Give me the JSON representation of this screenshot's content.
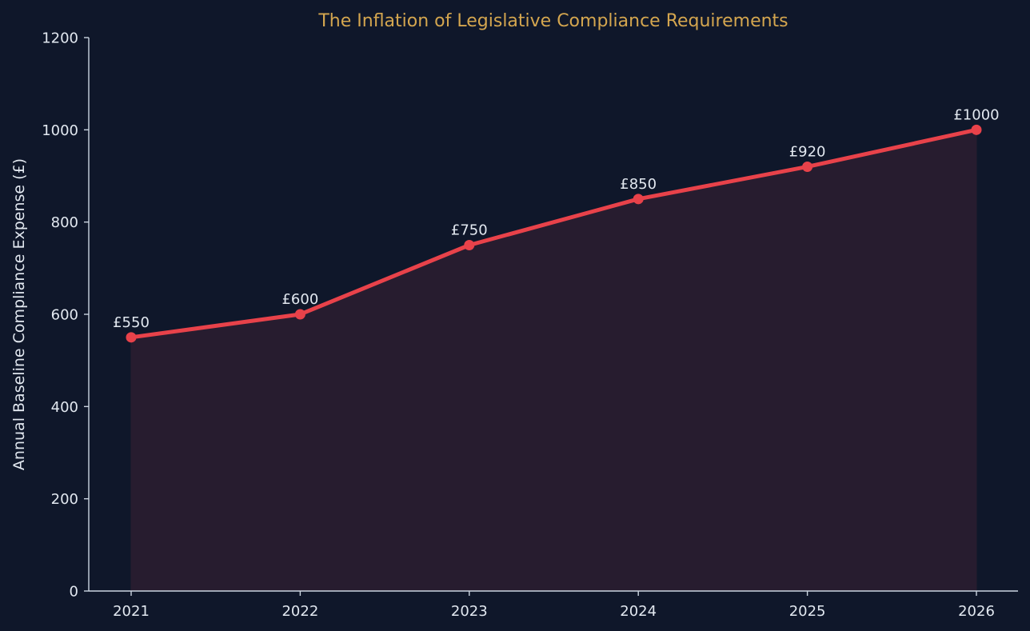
{
  "chart_data": {
    "type": "area",
    "title": "The Inflation of Legislative Compliance Requirements",
    "xlabel": "",
    "ylabel": "Annual Baseline Compliance Expense (£)",
    "x": [
      "2021",
      "2022",
      "2023",
      "2024",
      "2025",
      "2026"
    ],
    "series": [
      {
        "values": [
          550,
          600,
          750,
          850,
          920,
          1000
        ],
        "data_labels": [
          "£550",
          "£600",
          "£750",
          "£850",
          "£920",
          "£1000"
        ]
      }
    ],
    "ylim": [
      0,
      1200
    ],
    "yticks": [
      "0",
      "200",
      "400",
      "600",
      "800",
      "1000",
      "1200"
    ],
    "grid": false,
    "legend": "none"
  },
  "colors": {
    "background": "#0f172a",
    "title": "#d4a64f",
    "text": "#e2e8f0",
    "axis": "#cbd5e1",
    "line": "#e8424a",
    "fill": "#271c2f"
  }
}
